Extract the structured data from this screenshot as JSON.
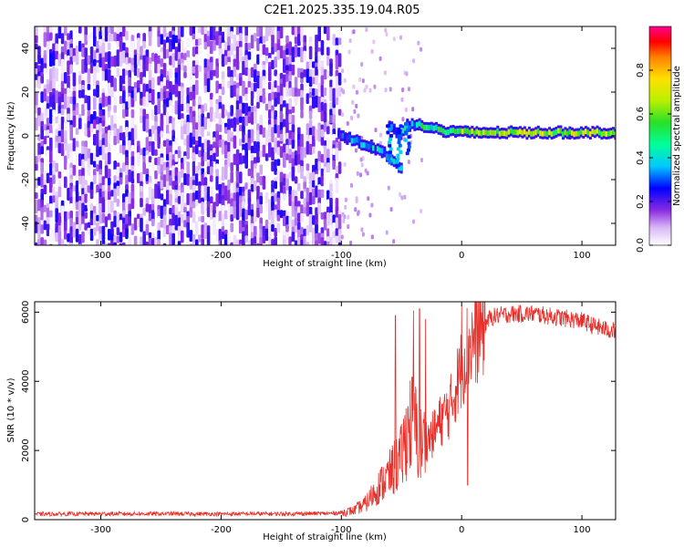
{
  "figure": {
    "title": "C2E1.2025.335.19.04.R05"
  },
  "chart_data": [
    {
      "type": "heatmap",
      "title": "",
      "xlabel": "Height of straight line (km)",
      "ylabel": "Frequency (Hz)",
      "xlim": [
        -355,
        128
      ],
      "ylim": [
        -50,
        50
      ],
      "xticks": [
        -300,
        -200,
        -100,
        0,
        100
      ],
      "yticks": [
        -40,
        -20,
        0,
        20,
        40
      ],
      "xtick_labels": [
        "-300",
        "-200",
        "-100",
        "0",
        "100"
      ],
      "ytick_labels": [
        "-40",
        "-20",
        "0",
        "20",
        "40"
      ],
      "colorbar": {
        "label": "Normalized spectral amplitude",
        "range": [
          0,
          1
        ],
        "ticks": [
          0.0,
          0.2,
          0.4,
          0.6,
          0.8
        ],
        "tick_labels": [
          "0.0",
          "0.2",
          "0.4",
          "0.6",
          "0.8"
        ],
        "colormap": "rainbow"
      },
      "noise_region_x": [
        -355,
        -102
      ],
      "noise_amplitude_range": [
        0.0,
        0.25
      ],
      "signal_track": [
        {
          "x": -102,
          "y": 1,
          "amp": 0.25
        },
        {
          "x": -95,
          "y": -1,
          "amp": 0.3
        },
        {
          "x": -85,
          "y": -3,
          "amp": 0.35
        },
        {
          "x": -75,
          "y": -5,
          "amp": 0.35
        },
        {
          "x": -66,
          "y": -7,
          "amp": 0.35
        },
        {
          "x": -58,
          "y": -11,
          "amp": 0.35
        },
        {
          "x": -50,
          "y": -15,
          "amp": 0.3
        },
        {
          "x": -60,
          "y": 5,
          "amp": 0.3
        },
        {
          "x": -52,
          "y": 0,
          "amp": 0.35
        },
        {
          "x": -45,
          "y": 5,
          "amp": 0.35
        },
        {
          "x": -35,
          "y": 5,
          "amp": 0.45
        },
        {
          "x": -25,
          "y": 4,
          "amp": 0.45
        },
        {
          "x": -15,
          "y": 2,
          "amp": 0.5
        },
        {
          "x": -5,
          "y": 2,
          "amp": 0.55
        },
        {
          "x": 5,
          "y": 1.5,
          "amp": 0.6
        },
        {
          "x": 30,
          "y": 1.5,
          "amp": 0.62
        },
        {
          "x": 60,
          "y": 1.5,
          "amp": 0.63
        },
        {
          "x": 90,
          "y": 1.5,
          "amp": 0.63
        },
        {
          "x": 128,
          "y": 1.5,
          "amp": 0.63
        }
      ]
    },
    {
      "type": "line",
      "title": "",
      "xlabel": "Height of straight line (km)",
      "ylabel": "SNR (10 * v/v)",
      "xlim": [
        -355,
        128
      ],
      "ylim": [
        0,
        6300
      ],
      "xticks": [
        -300,
        -200,
        -100,
        0,
        100
      ],
      "yticks": [
        0,
        2000,
        4000,
        6000
      ],
      "xtick_labels": [
        "-300",
        "-200",
        "-100",
        "0",
        "100"
      ],
      "ytick_labels": [
        "0",
        "2000",
        "4000",
        "6000"
      ],
      "color": "#e8302a",
      "series": [
        {
          "x": [
            -355,
            -300,
            -250,
            -200,
            -150,
            -110,
            -100,
            -90,
            -80,
            -70,
            -60,
            -50,
            -45,
            -40,
            -35,
            -30,
            -25,
            -20,
            -15,
            -10,
            -5,
            0,
            5,
            10,
            15,
            20,
            25,
            30,
            40,
            50,
            60,
            70,
            80,
            90,
            100,
            110,
            120,
            128
          ],
          "y": [
            160,
            170,
            170,
            165,
            170,
            180,
            200,
            260,
            450,
            900,
            1300,
            1800,
            2600,
            2900,
            2100,
            2300,
            2400,
            2700,
            3000,
            3200,
            3800,
            4400,
            5000,
            5200,
            5500,
            5700,
            5850,
            5900,
            5950,
            5950,
            5950,
            5900,
            5850,
            5800,
            5750,
            5600,
            5500,
            5450
          ]
        }
      ],
      "spikes": [
        {
          "x": -55,
          "y": 5900
        },
        {
          "x": -40,
          "y": 6050
        },
        {
          "x": -35,
          "y": 6100
        },
        {
          "x": -30,
          "y": 5800
        },
        {
          "x": 0,
          "y": 6200
        },
        {
          "x": 5,
          "y": 1000
        }
      ]
    }
  ]
}
